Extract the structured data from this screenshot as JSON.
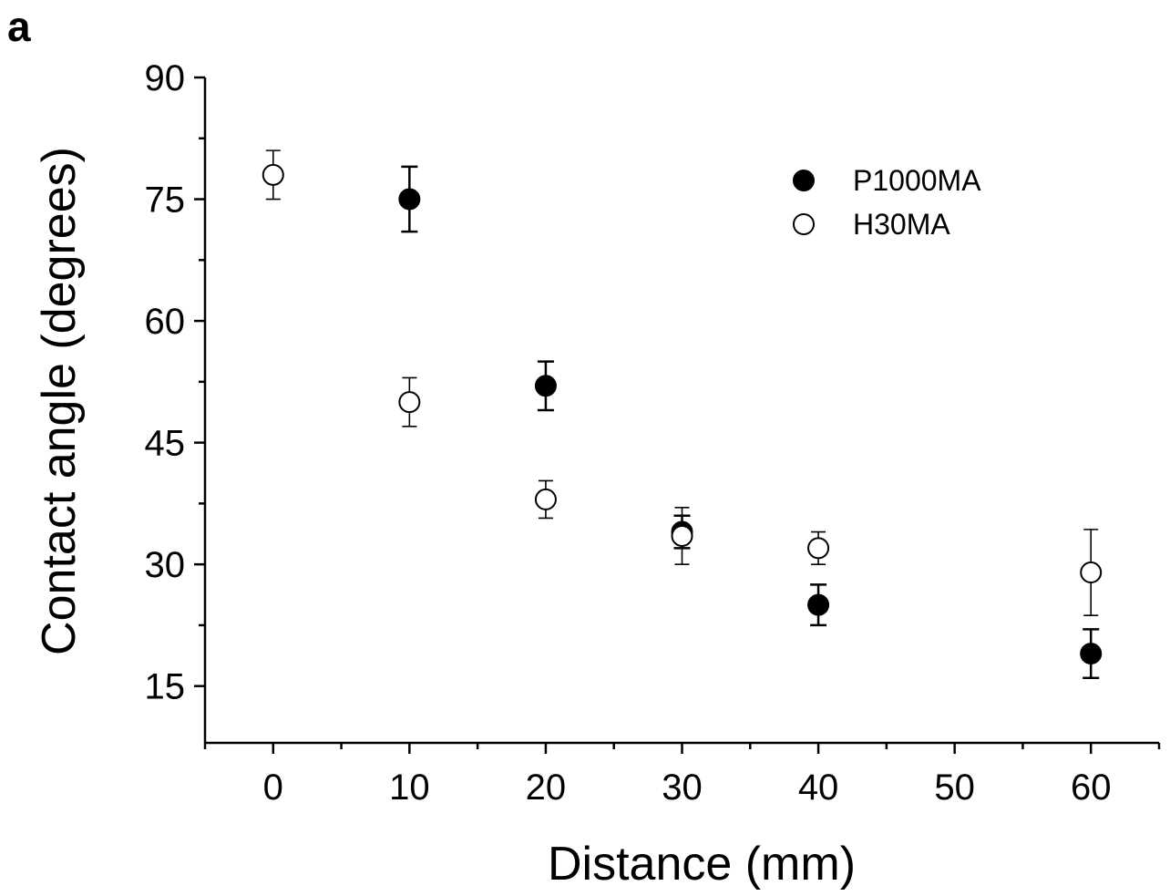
{
  "panel_label": "a",
  "chart_data": {
    "type": "scatter",
    "xlabel": "Distance (mm)",
    "ylabel": "Contact angle (degrees)",
    "xlim": [
      -5,
      65
    ],
    "ylim": [
      8,
      90
    ],
    "xticks": [
      0,
      10,
      20,
      30,
      40,
      50,
      60
    ],
    "yticks": [
      15,
      30,
      45,
      60,
      75,
      90
    ],
    "legend_position": "top-right",
    "grid": false,
    "series": [
      {
        "name": "P1000MA",
        "marker": "filled-circle",
        "color": "#000000",
        "points": [
          {
            "x": 10,
            "y": 75,
            "err": 4
          },
          {
            "x": 20,
            "y": 52,
            "err": 3
          },
          {
            "x": 30,
            "y": 34,
            "err": 2
          },
          {
            "x": 40,
            "y": 25,
            "err": 2.5
          },
          {
            "x": 60,
            "y": 19,
            "err": 3
          }
        ]
      },
      {
        "name": "H30MA",
        "marker": "open-circle",
        "color": "#000000",
        "points": [
          {
            "x": 0,
            "y": 78,
            "err": 3
          },
          {
            "x": 10,
            "y": 50,
            "err": 3
          },
          {
            "x": 20,
            "y": 38,
            "err": 2.3
          },
          {
            "x": 30,
            "y": 33.5,
            "err": 3.5
          },
          {
            "x": 40,
            "y": 32,
            "err": 2
          },
          {
            "x": 60,
            "y": 29,
            "err": 5.3
          }
        ]
      }
    ]
  }
}
